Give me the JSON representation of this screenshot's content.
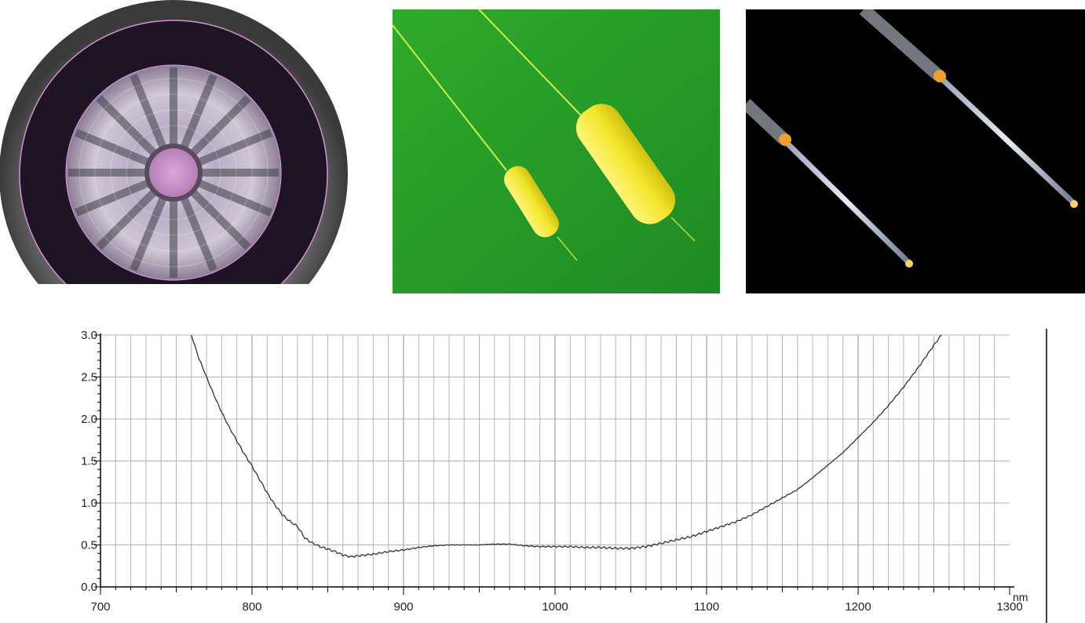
{
  "photos": [
    {
      "subject": "fiber-cross-section"
    },
    {
      "subject": "yellow-ferrules-on-green"
    },
    {
      "subject": "fiber-tips-on-black"
    }
  ],
  "chart_data": {
    "type": "line",
    "title": "",
    "xlabel": "",
    "ylabel": "",
    "x_unit": "nm",
    "xlim": [
      700,
      1300
    ],
    "ylim": [
      0,
      3.0
    ],
    "x_ticks": [
      700,
      800,
      900,
      1000,
      1100,
      1200,
      1300
    ],
    "x_tick_labels": [
      "700",
      "800",
      "900",
      "1000",
      "1100",
      "1200",
      "1300"
    ],
    "y_ticks": [
      0,
      0.5,
      1.0,
      1.5,
      2.0,
      2.5,
      3.0
    ],
    "y_tick_labels": [
      "0.0",
      "0.5",
      "1.0",
      "1.5",
      "2.0",
      "2.5",
      "3.0"
    ],
    "grid": true,
    "series": [
      {
        "color": "#333333",
        "x": [
          760,
          765,
          770,
          775,
          780,
          785,
          790,
          795,
          800,
          805,
          810,
          815,
          820,
          825,
          830,
          835,
          840,
          845,
          850,
          855,
          860,
          865,
          870,
          875,
          880,
          890,
          900,
          910,
          920,
          930,
          940,
          950,
          960,
          970,
          980,
          990,
          1000,
          1010,
          1020,
          1030,
          1040,
          1050,
          1060,
          1070,
          1080,
          1090,
          1100,
          1110,
          1120,
          1130,
          1140,
          1150,
          1160,
          1170,
          1180,
          1190,
          1200,
          1210,
          1220,
          1230,
          1240,
          1250,
          1255
        ],
        "y": [
          3.0,
          2.72,
          2.5,
          2.28,
          2.08,
          1.9,
          1.74,
          1.58,
          1.44,
          1.28,
          1.12,
          0.98,
          0.86,
          0.78,
          0.72,
          0.58,
          0.52,
          0.48,
          0.45,
          0.42,
          0.38,
          0.36,
          0.37,
          0.38,
          0.39,
          0.42,
          0.44,
          0.47,
          0.49,
          0.5,
          0.5,
          0.5,
          0.51,
          0.51,
          0.49,
          0.48,
          0.48,
          0.48,
          0.47,
          0.47,
          0.46,
          0.46,
          0.48,
          0.52,
          0.56,
          0.6,
          0.66,
          0.72,
          0.78,
          0.86,
          0.96,
          1.06,
          1.16,
          1.3,
          1.45,
          1.6,
          1.78,
          1.96,
          2.16,
          2.38,
          2.62,
          2.88,
          3.0
        ]
      }
    ]
  }
}
